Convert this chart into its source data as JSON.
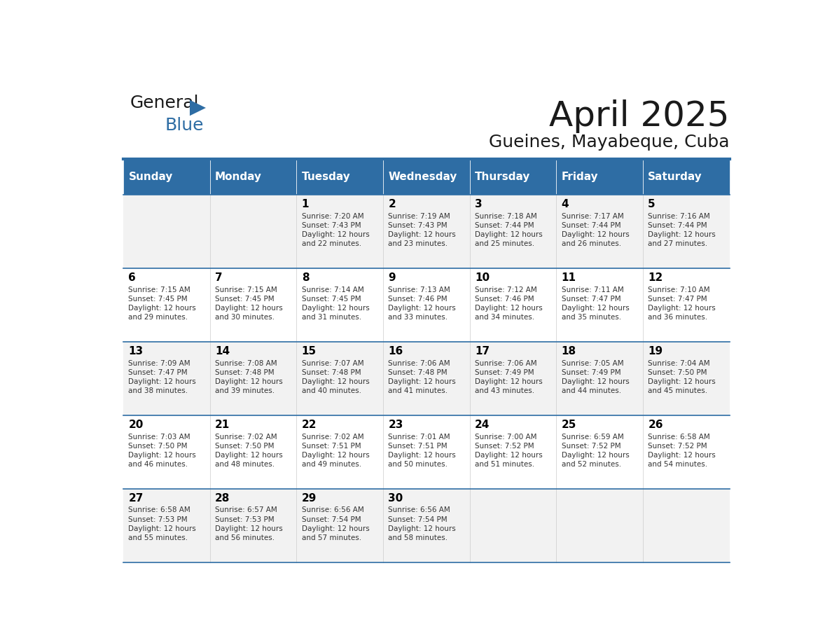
{
  "title": "April 2025",
  "subtitle": "Gueines, Mayabeque, Cuba",
  "header_bg": "#2E6DA4",
  "header_text_color": "#FFFFFF",
  "cell_bg_odd": "#F2F2F2",
  "cell_bg_even": "#FFFFFF",
  "cell_text_color": "#333333",
  "day_number_color": "#000000",
  "grid_line_color": "#2E6DA4",
  "days_of_week": [
    "Sunday",
    "Monday",
    "Tuesday",
    "Wednesday",
    "Thursday",
    "Friday",
    "Saturday"
  ],
  "weeks": [
    [
      {
        "day": "",
        "info": ""
      },
      {
        "day": "",
        "info": ""
      },
      {
        "day": "1",
        "info": "Sunrise: 7:20 AM\nSunset: 7:43 PM\nDaylight: 12 hours\nand 22 minutes."
      },
      {
        "day": "2",
        "info": "Sunrise: 7:19 AM\nSunset: 7:43 PM\nDaylight: 12 hours\nand 23 minutes."
      },
      {
        "day": "3",
        "info": "Sunrise: 7:18 AM\nSunset: 7:44 PM\nDaylight: 12 hours\nand 25 minutes."
      },
      {
        "day": "4",
        "info": "Sunrise: 7:17 AM\nSunset: 7:44 PM\nDaylight: 12 hours\nand 26 minutes."
      },
      {
        "day": "5",
        "info": "Sunrise: 7:16 AM\nSunset: 7:44 PM\nDaylight: 12 hours\nand 27 minutes."
      }
    ],
    [
      {
        "day": "6",
        "info": "Sunrise: 7:15 AM\nSunset: 7:45 PM\nDaylight: 12 hours\nand 29 minutes."
      },
      {
        "day": "7",
        "info": "Sunrise: 7:15 AM\nSunset: 7:45 PM\nDaylight: 12 hours\nand 30 minutes."
      },
      {
        "day": "8",
        "info": "Sunrise: 7:14 AM\nSunset: 7:45 PM\nDaylight: 12 hours\nand 31 minutes."
      },
      {
        "day": "9",
        "info": "Sunrise: 7:13 AM\nSunset: 7:46 PM\nDaylight: 12 hours\nand 33 minutes."
      },
      {
        "day": "10",
        "info": "Sunrise: 7:12 AM\nSunset: 7:46 PM\nDaylight: 12 hours\nand 34 minutes."
      },
      {
        "day": "11",
        "info": "Sunrise: 7:11 AM\nSunset: 7:47 PM\nDaylight: 12 hours\nand 35 minutes."
      },
      {
        "day": "12",
        "info": "Sunrise: 7:10 AM\nSunset: 7:47 PM\nDaylight: 12 hours\nand 36 minutes."
      }
    ],
    [
      {
        "day": "13",
        "info": "Sunrise: 7:09 AM\nSunset: 7:47 PM\nDaylight: 12 hours\nand 38 minutes."
      },
      {
        "day": "14",
        "info": "Sunrise: 7:08 AM\nSunset: 7:48 PM\nDaylight: 12 hours\nand 39 minutes."
      },
      {
        "day": "15",
        "info": "Sunrise: 7:07 AM\nSunset: 7:48 PM\nDaylight: 12 hours\nand 40 minutes."
      },
      {
        "day": "16",
        "info": "Sunrise: 7:06 AM\nSunset: 7:48 PM\nDaylight: 12 hours\nand 41 minutes."
      },
      {
        "day": "17",
        "info": "Sunrise: 7:06 AM\nSunset: 7:49 PM\nDaylight: 12 hours\nand 43 minutes."
      },
      {
        "day": "18",
        "info": "Sunrise: 7:05 AM\nSunset: 7:49 PM\nDaylight: 12 hours\nand 44 minutes."
      },
      {
        "day": "19",
        "info": "Sunrise: 7:04 AM\nSunset: 7:50 PM\nDaylight: 12 hours\nand 45 minutes."
      }
    ],
    [
      {
        "day": "20",
        "info": "Sunrise: 7:03 AM\nSunset: 7:50 PM\nDaylight: 12 hours\nand 46 minutes."
      },
      {
        "day": "21",
        "info": "Sunrise: 7:02 AM\nSunset: 7:50 PM\nDaylight: 12 hours\nand 48 minutes."
      },
      {
        "day": "22",
        "info": "Sunrise: 7:02 AM\nSunset: 7:51 PM\nDaylight: 12 hours\nand 49 minutes."
      },
      {
        "day": "23",
        "info": "Sunrise: 7:01 AM\nSunset: 7:51 PM\nDaylight: 12 hours\nand 50 minutes."
      },
      {
        "day": "24",
        "info": "Sunrise: 7:00 AM\nSunset: 7:52 PM\nDaylight: 12 hours\nand 51 minutes."
      },
      {
        "day": "25",
        "info": "Sunrise: 6:59 AM\nSunset: 7:52 PM\nDaylight: 12 hours\nand 52 minutes."
      },
      {
        "day": "26",
        "info": "Sunrise: 6:58 AM\nSunset: 7:52 PM\nDaylight: 12 hours\nand 54 minutes."
      }
    ],
    [
      {
        "day": "27",
        "info": "Sunrise: 6:58 AM\nSunset: 7:53 PM\nDaylight: 12 hours\nand 55 minutes."
      },
      {
        "day": "28",
        "info": "Sunrise: 6:57 AM\nSunset: 7:53 PM\nDaylight: 12 hours\nand 56 minutes."
      },
      {
        "day": "29",
        "info": "Sunrise: 6:56 AM\nSunset: 7:54 PM\nDaylight: 12 hours\nand 57 minutes."
      },
      {
        "day": "30",
        "info": "Sunrise: 6:56 AM\nSunset: 7:54 PM\nDaylight: 12 hours\nand 58 minutes."
      },
      {
        "day": "",
        "info": ""
      },
      {
        "day": "",
        "info": ""
      },
      {
        "day": "",
        "info": ""
      }
    ]
  ],
  "logo_text_general": "General",
  "logo_text_blue": "Blue",
  "logo_color_general": "#1a1a1a",
  "logo_color_blue": "#2E6DA4",
  "logo_triangle_color": "#2E6DA4"
}
